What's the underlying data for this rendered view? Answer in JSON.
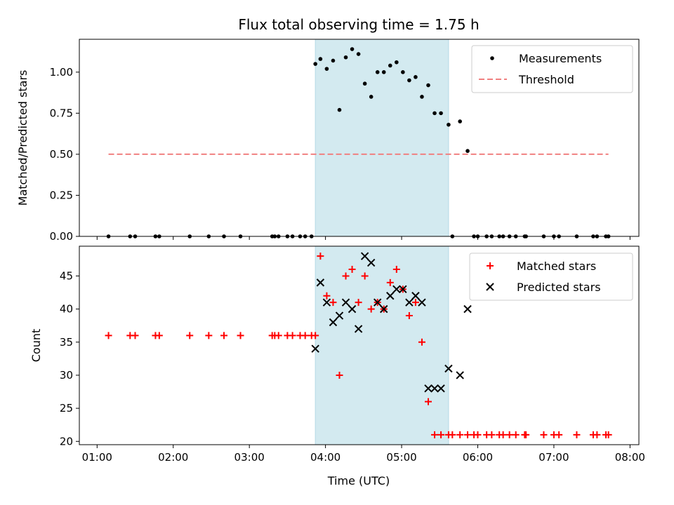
{
  "chart_data": {
    "type": "scatter",
    "title": "Flux total observing time = 1.75 h",
    "xlabel": "Time (UTC)",
    "x_tick_labels": [
      "01:00",
      "02:00",
      "03:00",
      "04:00",
      "05:00",
      "06:00",
      "07:00",
      "08:00"
    ],
    "observing_window": {
      "start": "03:52",
      "end": "05:37",
      "color": "#d3eaf0"
    },
    "panels": [
      {
        "ylabel": "Matched/Predicted stars",
        "ylim": [
          0,
          1.2
        ],
        "y_tick_labels": [
          "0.00",
          "0.25",
          "0.50",
          "0.75",
          "1.00"
        ],
        "legend_position": "top-right",
        "series": [
          {
            "name": "Measurements",
            "marker": "dot",
            "color": "#000000",
            "points": [
              [
                "01:09",
                0
              ],
              [
                "01:26",
                0
              ],
              [
                "01:30",
                0
              ],
              [
                "01:46",
                0
              ],
              [
                "01:49",
                0
              ],
              [
                "02:13",
                0
              ],
              [
                "02:28",
                0
              ],
              [
                "02:40",
                0
              ],
              [
                "02:53",
                0
              ],
              [
                "03:18",
                0
              ],
              [
                "03:20",
                0
              ],
              [
                "03:23",
                0
              ],
              [
                "03:30",
                0
              ],
              [
                "03:34",
                0
              ],
              [
                "03:40",
                0
              ],
              [
                "03:44",
                0
              ],
              [
                "03:49",
                0
              ],
              [
                "03:52",
                1.05
              ],
              [
                "03:56",
                1.08
              ],
              [
                "04:01",
                1.02
              ],
              [
                "04:06",
                1.07
              ],
              [
                "04:11",
                0.77
              ],
              [
                "04:16",
                1.09
              ],
              [
                "04:21",
                1.14
              ],
              [
                "04:26",
                1.11
              ],
              [
                "04:31",
                0.93
              ],
              [
                "04:36",
                0.85
              ],
              [
                "04:41",
                1.0
              ],
              [
                "04:46",
                1.0
              ],
              [
                "04:51",
                1.04
              ],
              [
                "04:56",
                1.06
              ],
              [
                "05:01",
                1.0
              ],
              [
                "05:06",
                0.95
              ],
              [
                "05:11",
                0.97
              ],
              [
                "05:16",
                0.85
              ],
              [
                "05:21",
                0.92
              ],
              [
                "05:26",
                0.75
              ],
              [
                "05:31",
                0.75
              ],
              [
                "05:37",
                0.68
              ],
              [
                "05:46",
                0.7
              ],
              [
                "05:52",
                0.52
              ],
              [
                "05:40",
                0
              ],
              [
                "05:57",
                0
              ],
              [
                "06:00",
                0
              ],
              [
                "06:07",
                0
              ],
              [
                "06:11",
                0
              ],
              [
                "06:17",
                0
              ],
              [
                "06:20",
                0
              ],
              [
                "06:25",
                0
              ],
              [
                "06:30",
                0
              ],
              [
                "06:37",
                0
              ],
              [
                "06:38",
                0
              ],
              [
                "06:52",
                0
              ],
              [
                "07:00",
                0
              ],
              [
                "07:04",
                0
              ],
              [
                "07:18",
                0
              ],
              [
                "07:31",
                0
              ],
              [
                "07:34",
                0
              ],
              [
                "07:41",
                0
              ],
              [
                "07:43",
                0
              ]
            ]
          },
          {
            "name": "Threshold",
            "type": "line",
            "style": "dashed",
            "color": "#f08080",
            "x": [
              "01:09",
              "07:43"
            ],
            "y": [
              0.5,
              0.5
            ]
          }
        ]
      },
      {
        "ylabel": "Count",
        "ylim": [
          19.5,
          49.5
        ],
        "y_tick_labels": [
          "20",
          "25",
          "30",
          "35",
          "40",
          "45"
        ],
        "legend_position": "top-right",
        "series": [
          {
            "name": "Matched stars",
            "marker": "plus",
            "color": "#ff0000",
            "points": [
              [
                "01:09",
                36
              ],
              [
                "01:26",
                36
              ],
              [
                "01:30",
                36
              ],
              [
                "01:46",
                36
              ],
              [
                "01:49",
                36
              ],
              [
                "02:13",
                36
              ],
              [
                "02:28",
                36
              ],
              [
                "02:40",
                36
              ],
              [
                "02:53",
                36
              ],
              [
                "03:18",
                36
              ],
              [
                "03:20",
                36
              ],
              [
                "03:23",
                36
              ],
              [
                "03:30",
                36
              ],
              [
                "03:34",
                36
              ],
              [
                "03:40",
                36
              ],
              [
                "03:44",
                36
              ],
              [
                "03:49",
                36
              ],
              [
                "03:52",
                36
              ],
              [
                "03:56",
                48
              ],
              [
                "04:01",
                42
              ],
              [
                "04:06",
                41
              ],
              [
                "04:11",
                30
              ],
              [
                "04:16",
                45
              ],
              [
                "04:21",
                46
              ],
              [
                "04:26",
                41
              ],
              [
                "04:31",
                45
              ],
              [
                "04:36",
                40
              ],
              [
                "04:41",
                41
              ],
              [
                "04:46",
                40
              ],
              [
                "04:51",
                44
              ],
              [
                "04:56",
                46
              ],
              [
                "05:01",
                43
              ],
              [
                "05:06",
                39
              ],
              [
                "05:11",
                41
              ],
              [
                "05:16",
                35
              ],
              [
                "05:21",
                26
              ],
              [
                "05:26",
                21
              ],
              [
                "05:31",
                21
              ],
              [
                "05:37",
                21
              ],
              [
                "05:40",
                21
              ],
              [
                "05:46",
                21
              ],
              [
                "05:52",
                21
              ],
              [
                "05:57",
                21
              ],
              [
                "06:00",
                21
              ],
              [
                "06:07",
                21
              ],
              [
                "06:11",
                21
              ],
              [
                "06:17",
                21
              ],
              [
                "06:20",
                21
              ],
              [
                "06:25",
                21
              ],
              [
                "06:30",
                21
              ],
              [
                "06:37",
                21
              ],
              [
                "06:38",
                21
              ],
              [
                "06:52",
                21
              ],
              [
                "07:00",
                21
              ],
              [
                "07:04",
                21
              ],
              [
                "07:18",
                21
              ],
              [
                "07:31",
                21
              ],
              [
                "07:34",
                21
              ],
              [
                "07:41",
                21
              ],
              [
                "07:43",
                21
              ]
            ]
          },
          {
            "name": "Predicted stars",
            "marker": "x",
            "color": "#000000",
            "points": [
              [
                "03:52",
                34
              ],
              [
                "03:56",
                44
              ],
              [
                "04:01",
                41
              ],
              [
                "04:06",
                38
              ],
              [
                "04:11",
                39
              ],
              [
                "04:16",
                41
              ],
              [
                "04:21",
                40
              ],
              [
                "04:26",
                37
              ],
              [
                "04:31",
                48
              ],
              [
                "04:36",
                47
              ],
              [
                "04:41",
                41
              ],
              [
                "04:46",
                40
              ],
              [
                "04:51",
                42
              ],
              [
                "04:56",
                43
              ],
              [
                "05:01",
                43
              ],
              [
                "05:06",
                41
              ],
              [
                "05:11",
                42
              ],
              [
                "05:16",
                41
              ],
              [
                "05:21",
                28
              ],
              [
                "05:26",
                28
              ],
              [
                "05:31",
                28
              ],
              [
                "05:37",
                31
              ],
              [
                "05:46",
                30
              ],
              [
                "05:52",
                40
              ]
            ]
          }
        ]
      }
    ]
  }
}
